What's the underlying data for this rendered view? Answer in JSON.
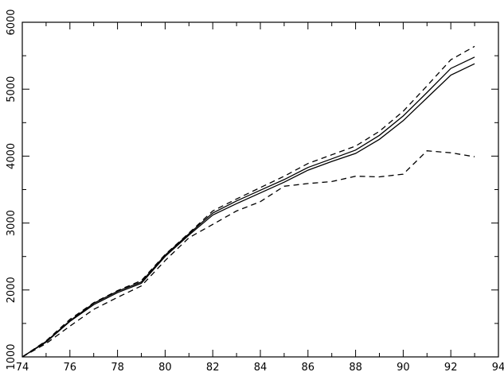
{
  "chart_data": {
    "type": "line",
    "title": "",
    "xlabel": "",
    "ylabel": "",
    "xlim": [
      74,
      94
    ],
    "ylim": [
      1000,
      6000
    ],
    "grid": false,
    "x_ticks": [
      74,
      76,
      78,
      80,
      82,
      84,
      86,
      88,
      90,
      92,
      94
    ],
    "x_tick_labels": [
      "74",
      "76",
      "78",
      "80",
      "82",
      "84",
      "86",
      "88",
      "90",
      "92",
      "94"
    ],
    "y_ticks": [
      1000,
      2000,
      3000,
      4000,
      5000,
      6000
    ],
    "y_tick_labels": [
      "1000",
      "2000",
      "3000",
      "4000",
      "5000",
      "6000"
    ],
    "x": [
      74,
      75,
      76,
      77,
      78,
      79,
      80,
      81,
      82,
      83,
      84,
      85,
      86,
      87,
      88,
      89,
      90,
      91,
      92,
      93
    ],
    "series": [
      {
        "style": "solid",
        "values": [
          1000,
          1230,
          1540,
          1800,
          1980,
          2120,
          2520,
          2840,
          3150,
          3330,
          3490,
          3650,
          3830,
          3960,
          4090,
          4310,
          4600,
          4950,
          5310,
          5480
        ]
      },
      {
        "style": "solid",
        "values": [
          1000,
          1220,
          1530,
          1780,
          1960,
          2100,
          2500,
          2820,
          3120,
          3290,
          3450,
          3610,
          3790,
          3920,
          4040,
          4250,
          4530,
          4870,
          5210,
          5380
        ]
      },
      {
        "style": "dashed",
        "values": [
          1000,
          1240,
          1560,
          1810,
          1990,
          2140,
          2530,
          2850,
          3180,
          3360,
          3530,
          3700,
          3890,
          4020,
          4150,
          4370,
          4670,
          5050,
          5440,
          5640
        ]
      },
      {
        "style": "dashed",
        "values": [
          1000,
          1200,
          1460,
          1710,
          1890,
          2060,
          2440,
          2780,
          2980,
          3180,
          3320,
          3550,
          3590,
          3620,
          3700,
          3690,
          3730,
          4080,
          4050,
          3990
        ]
      }
    ]
  }
}
